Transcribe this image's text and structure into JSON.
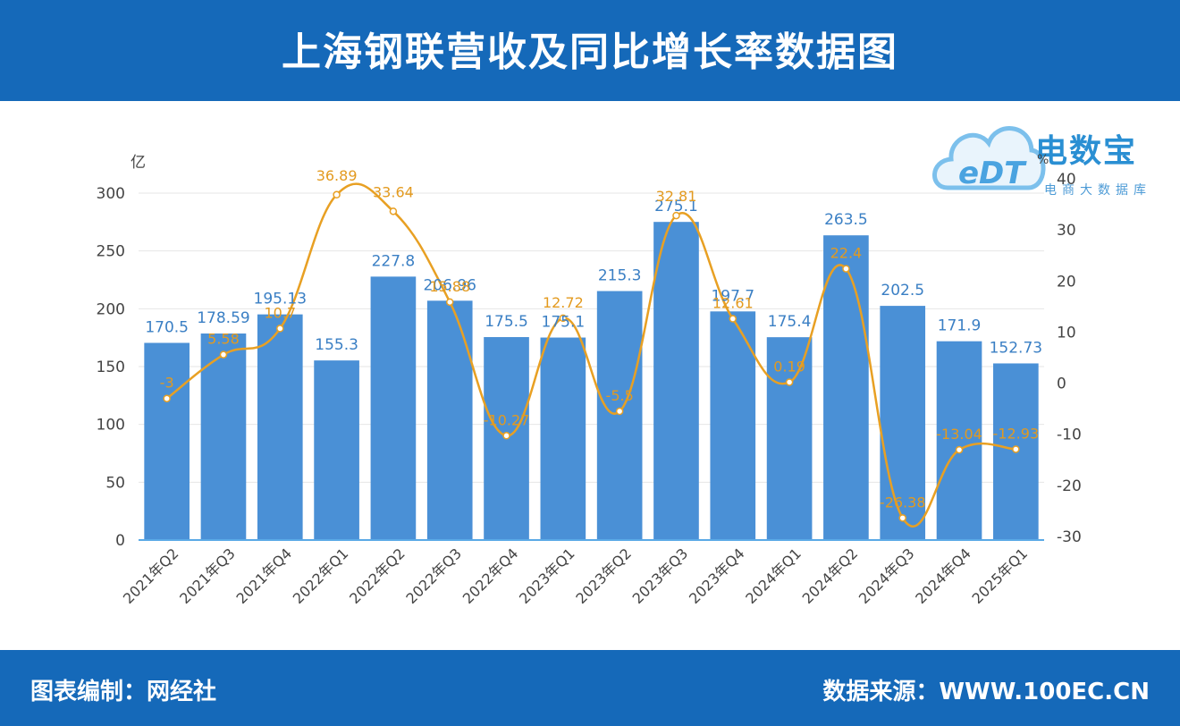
{
  "header": {
    "title": "上海钢联营收及同比增长率数据图"
  },
  "footer": {
    "credit": "图表编制：网经社",
    "source": "数据来源：WWW.100EC.CN"
  },
  "logo": {
    "brand": "电数宝",
    "mark": "eDT",
    "sub": "电商大数据库"
  },
  "chart_data": {
    "type": "bar",
    "title": "上海钢联营收及同比增长率数据图",
    "categories": [
      "2021年Q2",
      "2021年Q3",
      "2021年Q4",
      "2022年Q1",
      "2022年Q2",
      "2022年Q3",
      "2022年Q4",
      "2023年Q1",
      "2023年Q2",
      "2023年Q3",
      "2023年Q4",
      "2024年Q1",
      "2024年Q2",
      "2024年Q3",
      "2024年Q4",
      "2025年Q1"
    ],
    "left_axis": {
      "unit": "亿",
      "ylim": [
        0,
        300
      ],
      "ticks": [
        "0",
        "50",
        "100",
        "150",
        "200",
        "250",
        "300"
      ]
    },
    "right_axis": {
      "unit": "%",
      "ylim": [
        -30,
        40
      ],
      "ticks": [
        "-30",
        "-20",
        "-10",
        "0",
        "10",
        "20",
        "30",
        "40"
      ]
    },
    "series": [
      {
        "type": "bar",
        "axis": "left",
        "color": "#4a90d6",
        "values": [
          170.5,
          178.59,
          195.13,
          155.3,
          227.8,
          206.96,
          175.5,
          175.1,
          215.3,
          275.1,
          197.7,
          175.4,
          263.5,
          202.5,
          171.9,
          152.73
        ],
        "labels": [
          "170.5",
          "178.59",
          "195.13",
          "155.3",
          "227.8",
          "206.96",
          "175.5",
          "175.1",
          "215.3",
          "275.1",
          "197.7",
          "175.4",
          "263.5",
          "202.5",
          "171.9",
          "152.73"
        ]
      },
      {
        "type": "line",
        "axis": "right",
        "color": "#e8a023",
        "values": [
          -3,
          5.58,
          10.7,
          36.89,
          33.64,
          15.88,
          -10.27,
          12.72,
          -5.5,
          32.81,
          12.61,
          0.19,
          22.4,
          -26.38,
          -13.04,
          -12.93
        ],
        "labels": [
          "-3",
          "5.58",
          "10.7",
          "36.89",
          "33.64",
          "15.88",
          "-10.27",
          "12.72",
          "-5.5",
          "32.81",
          "12.61",
          "0.19",
          "22.4",
          "-26.38",
          "-13.04",
          "-12.93"
        ]
      }
    ],
    "legend": "none",
    "grid": true
  }
}
